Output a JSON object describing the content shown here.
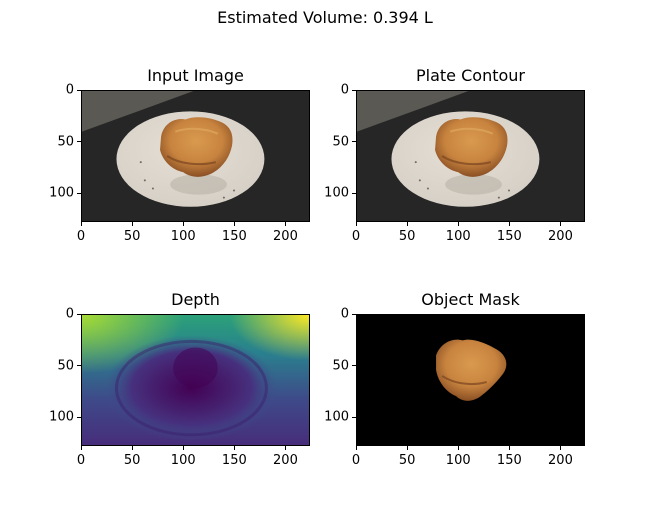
{
  "figure": {
    "suptitle": "Estimated Volume: 0.394 L"
  },
  "chart_data": [
    {
      "type": "image",
      "title": "Input Image",
      "content": "photo",
      "xlim": [
        0,
        224
      ],
      "ylim": [
        128,
        0
      ],
      "xticks": [
        0,
        50,
        100,
        150,
        200
      ],
      "yticks": [
        0,
        50,
        100
      ],
      "grid": false
    },
    {
      "type": "image",
      "title": "Plate Contour",
      "content": "photo",
      "xlim": [
        0,
        224
      ],
      "ylim": [
        128,
        0
      ],
      "xticks": [
        0,
        50,
        100,
        150,
        200
      ],
      "yticks": [
        0,
        50,
        100
      ],
      "grid": false
    },
    {
      "type": "heatmap",
      "title": "Depth",
      "content": "depth",
      "colormap": "viridis",
      "xlim": [
        0,
        224
      ],
      "ylim": [
        128,
        0
      ],
      "xticks": [
        0,
        50,
        100,
        150,
        200
      ],
      "yticks": [
        0,
        50,
        100
      ],
      "grid": false
    },
    {
      "type": "image",
      "title": "Object Mask",
      "content": "mask",
      "xlim": [
        0,
        224
      ],
      "ylim": [
        128,
        0
      ],
      "xticks": [
        0,
        50,
        100,
        150,
        200
      ],
      "yticks": [
        0,
        50,
        100
      ],
      "grid": false
    }
  ],
  "colors": {
    "table_dark": "#262626",
    "wall": "#5a5954",
    "plate": "#d6d0c7",
    "food": "#c8843f",
    "viridis_low": "#440154",
    "viridis_mid": "#21918c",
    "viridis_high": "#fde725",
    "mask_background": "#000000"
  }
}
